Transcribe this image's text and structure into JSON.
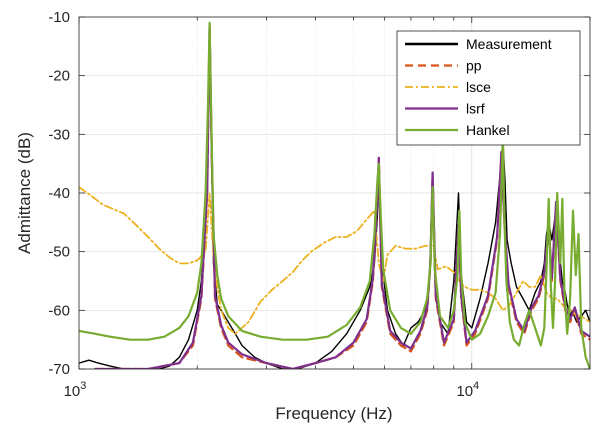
{
  "chart_data": {
    "type": "line",
    "title": "",
    "xlabel": "Frequency (Hz)",
    "ylabel": "Admittance (dB)",
    "xscale": "log",
    "xlim": [
      1000,
      20000
    ],
    "ylim": [
      -70,
      -10
    ],
    "grid": true,
    "legend_position": "top-right",
    "x_ticks": [
      {
        "value": 1000,
        "base": "10",
        "exp": "3"
      },
      {
        "value": 10000,
        "base": "10",
        "exp": "4"
      }
    ],
    "y_ticks": [
      -10,
      -20,
      -30,
      -40,
      -50,
      -60,
      -70
    ],
    "series": [
      {
        "name": "Measurement",
        "color": "#000000",
        "style": "solid",
        "x": [
          1000,
          1060,
          1120,
          1200,
          1300,
          1400,
          1500,
          1600,
          1700,
          1800,
          1900,
          2000,
          2050,
          2100,
          2130,
          2150,
          2170,
          2200,
          2250,
          2300,
          2350,
          2400,
          2500,
          2600,
          2800,
          3000,
          3300,
          3600,
          4000,
          4400,
          4800,
          5200,
          5500,
          5650,
          5750,
          5800,
          5900,
          6100,
          6400,
          6700,
          7000,
          7300,
          7600,
          7800,
          7900,
          7950,
          8050,
          8300,
          8700,
          9000,
          9150,
          9250,
          9400,
          9700,
          10000,
          10500,
          11000,
          11500,
          11800,
          12000,
          12150,
          12300,
          12600,
          13000,
          13500,
          14000,
          14500,
          15000,
          15300,
          15500,
          15700,
          16000,
          16300,
          16700,
          17000,
          17300,
          17500,
          17800,
          18000,
          18500,
          19000,
          19500,
          20000
        ],
        "y": [
          -69,
          -68.5,
          -69,
          -69.5,
          -70,
          -70,
          -70,
          -70,
          -69.5,
          -68,
          -65,
          -60,
          -55,
          -45,
          -25,
          -12,
          -30,
          -52,
          -59,
          -60,
          -61,
          -62,
          -64,
          -66,
          -68,
          -69,
          -70,
          -70,
          -69,
          -67,
          -64,
          -60,
          -56,
          -52,
          -44,
          -36,
          -52,
          -60,
          -64,
          -66,
          -63,
          -62,
          -60,
          -55,
          -42,
          -38,
          -54,
          -62,
          -64,
          -55,
          -46,
          -40,
          -54,
          -62,
          -63,
          -58,
          -52,
          -45,
          -37,
          -31,
          -38,
          -48,
          -52,
          -56,
          -58,
          -60,
          -57,
          -55,
          -52,
          -47,
          -45,
          -48,
          -44,
          -50,
          -55,
          -57,
          -59,
          -61,
          -60,
          -62,
          -61,
          -60,
          -62
        ]
      },
      {
        "name": "pp",
        "color": "#D95319",
        "style": "dashed",
        "x": [
          1100,
          1500,
          1800,
          1950,
          2050,
          2120,
          2150,
          2180,
          2220,
          2300,
          2400,
          2600,
          3000,
          3500,
          4000,
          4500,
          5000,
          5400,
          5600,
          5700,
          5800,
          5900,
          6200,
          6600,
          7000,
          7400,
          7700,
          7850,
          7950,
          8100,
          8500,
          9000,
          9250,
          9400,
          9700,
          10200,
          11000,
          11600,
          11900,
          12100,
          12400,
          13000,
          13600,
          14200,
          14800,
          15300,
          15700,
          16000,
          16400,
          16800,
          17300,
          17800,
          18300,
          19000,
          20000
        ],
        "y": [
          -70,
          -70,
          -69,
          -66,
          -58,
          -40,
          -12,
          -35,
          -58,
          -63,
          -66,
          -68,
          -69,
          -70,
          -69,
          -68,
          -66,
          -62,
          -55,
          -46,
          -34,
          -56,
          -64,
          -66,
          -67,
          -64,
          -60,
          -52,
          -37,
          -58,
          -66,
          -62,
          -46,
          -58,
          -66,
          -64,
          -58,
          -48,
          -33,
          -45,
          -56,
          -62,
          -64,
          -60,
          -58,
          -54,
          -46,
          -55,
          -42,
          -55,
          -60,
          -62,
          -60,
          -64,
          -65
        ]
      },
      {
        "name": "lsce",
        "color": "#EDB120",
        "style": "dashdot",
        "x": [
          1000,
          1050,
          1100,
          1150,
          1200,
          1300,
          1400,
          1500,
          1600,
          1700,
          1800,
          1900,
          2000,
          2100,
          2150,
          2200,
          2250,
          2300,
          2400,
          2500,
          2700,
          2900,
          3100,
          3300,
          3500,
          3700,
          3900,
          4200,
          4500,
          4800,
          5100,
          5400,
          5650,
          5800,
          5950,
          6100,
          6400,
          6800,
          7200,
          7600,
          7900,
          8000,
          8200,
          8600,
          9000,
          9300,
          9600,
          10000,
          10500,
          11000,
          11500,
          12000,
          12500,
          13000,
          13500,
          14000,
          14500,
          15000,
          15500,
          16000,
          16500,
          17000,
          17500,
          18000,
          18500,
          19000,
          20000
        ],
        "y": [
          -39,
          -40,
          -41,
          -42,
          -42.5,
          -43.5,
          -45.5,
          -47.5,
          -49.5,
          -51,
          -52,
          -52,
          -51.5,
          -50,
          -40,
          -51,
          -56,
          -60,
          -63,
          -64,
          -62,
          -58.5,
          -56.5,
          -55,
          -53.5,
          -51.5,
          -50,
          -48.5,
          -47.5,
          -47.5,
          -46.5,
          -44.5,
          -43,
          -52,
          -55,
          -50.5,
          -49,
          -49.5,
          -49.5,
          -49,
          -49,
          -49.5,
          -53,
          -52.5,
          -53.5,
          -55,
          -56,
          -56.5,
          -56.5,
          -57,
          -58,
          -60,
          -59,
          -57,
          -55,
          -56,
          -56,
          -54,
          -57,
          -58,
          -58,
          -59,
          -60,
          -60,
          -61,
          -61,
          -62
        ]
      },
      {
        "name": "lsrf",
        "color": "#7E2F8E",
        "style": "solid",
        "x": [
          1100,
          1500,
          1800,
          1950,
          2050,
          2120,
          2150,
          2180,
          2220,
          2300,
          2400,
          2600,
          3000,
          3500,
          4000,
          4500,
          5000,
          5400,
          5600,
          5700,
          5800,
          5900,
          6200,
          6600,
          7000,
          7400,
          7700,
          7850,
          7950,
          8100,
          8500,
          9000,
          9250,
          9400,
          9700,
          10200,
          11000,
          11600,
          11900,
          12100,
          12400,
          13000,
          13600,
          14200,
          14800,
          15300,
          15700,
          16000,
          16400,
          16800,
          17300,
          17800,
          18300,
          19000,
          20000
        ],
        "y": [
          -70,
          -70,
          -69,
          -65.5,
          -57.5,
          -39.5,
          -11.5,
          -34.5,
          -57.5,
          -62.5,
          -65.5,
          -67.5,
          -69,
          -70,
          -69,
          -68,
          -65.5,
          -61.5,
          -54.5,
          -45.5,
          -34,
          -55.5,
          -63.5,
          -65.5,
          -66.5,
          -63.5,
          -59.5,
          -51.5,
          -36.5,
          -57.5,
          -65.5,
          -61.5,
          -45.5,
          -57.5,
          -65.5,
          -63.5,
          -57.5,
          -47.5,
          -33,
          -44.5,
          -55.5,
          -61.5,
          -63.5,
          -59.5,
          -57.5,
          -53.5,
          -45.5,
          -54.5,
          -41.5,
          -54.5,
          -59.5,
          -61.5,
          -59.5,
          -63.5,
          -64.5
        ]
      },
      {
        "name": "Hankel",
        "color": "#77AC30",
        "style": "solid",
        "x": [
          1000,
          1100,
          1200,
          1350,
          1500,
          1650,
          1800,
          1900,
          2000,
          2050,
          2100,
          2130,
          2150,
          2170,
          2200,
          2250,
          2300,
          2400,
          2600,
          2900,
          3300,
          3800,
          4300,
          4800,
          5200,
          5500,
          5650,
          5750,
          5800,
          5850,
          5950,
          6200,
          6600,
          7000,
          7400,
          7700,
          7850,
          7950,
          8050,
          8300,
          8700,
          9000,
          9200,
          9300,
          9400,
          9600,
          10000,
          10500,
          11000,
          11500,
          11800,
          12000,
          12100,
          12250,
          12500,
          12800,
          13200,
          13600,
          14000,
          14500,
          15000,
          15300,
          15500,
          15700,
          15900,
          16100,
          16300,
          16500,
          16800,
          17000,
          17200,
          17500,
          17800,
          18100,
          18400,
          18700,
          19000,
          19500,
          20000
        ],
        "y": [
          -63.5,
          -64,
          -64.5,
          -65,
          -65,
          -64.5,
          -63,
          -61,
          -57,
          -52,
          -40,
          -25,
          -11,
          -26,
          -47,
          -54,
          -58,
          -61,
          -63.5,
          -64.5,
          -65,
          -65,
          -64.5,
          -62.5,
          -59.5,
          -55,
          -47,
          -38,
          -35,
          -42,
          -53,
          -60,
          -63,
          -64,
          -62,
          -58,
          -52,
          -39,
          -53,
          -61,
          -63,
          -60,
          -54,
          -43,
          -54,
          -62,
          -65,
          -64,
          -61,
          -57,
          -47,
          -30,
          -44,
          -55,
          -62,
          -65,
          -66,
          -62.5,
          -60,
          -63,
          -66,
          -63,
          -53,
          -41,
          -56,
          -63,
          -55,
          -40,
          -52,
          -41,
          -56,
          -64,
          -58,
          -43,
          -54,
          -47,
          -63,
          -68,
          -70
        ]
      }
    ]
  }
}
